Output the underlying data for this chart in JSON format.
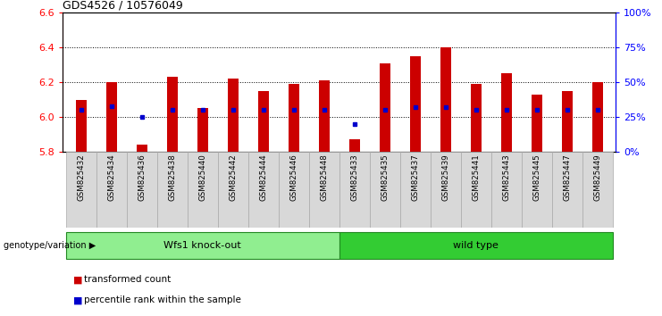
{
  "title": "GDS4526 / 10576049",
  "samples": [
    "GSM825432",
    "GSM825434",
    "GSM825436",
    "GSM825438",
    "GSM825440",
    "GSM825442",
    "GSM825444",
    "GSM825446",
    "GSM825448",
    "GSM825433",
    "GSM825435",
    "GSM825437",
    "GSM825439",
    "GSM825441",
    "GSM825443",
    "GSM825445",
    "GSM825447",
    "GSM825449"
  ],
  "red_values": [
    6.1,
    6.2,
    5.84,
    6.23,
    6.05,
    6.22,
    6.15,
    6.19,
    6.21,
    5.87,
    6.31,
    6.35,
    6.4,
    6.19,
    6.25,
    6.13,
    6.15,
    6.2
  ],
  "blue_percentile": [
    0.3,
    0.33,
    0.25,
    0.3,
    0.3,
    0.3,
    0.3,
    0.3,
    0.3,
    0.2,
    0.3,
    0.32,
    0.32,
    0.3,
    0.3,
    0.3,
    0.3,
    0.3
  ],
  "group_labels": [
    "Wfs1 knock-out",
    "wild type"
  ],
  "group_ko_indices": [
    0,
    8
  ],
  "group_wt_indices": [
    9,
    17
  ],
  "group_ko_color": "#90EE90",
  "group_wt_color": "#33CC33",
  "ylim_left": [
    5.8,
    6.6
  ],
  "ylim_right": [
    0,
    100
  ],
  "yticks_left": [
    5.8,
    6.0,
    6.2,
    6.4,
    6.6
  ],
  "yticks_right": [
    0,
    25,
    50,
    75,
    100
  ],
  "ytick_labels_right": [
    "0%",
    "25%",
    "50%",
    "75%",
    "100%"
  ],
  "bar_color": "#CC0000",
  "blue_color": "#0000CC",
  "baseline": 5.8,
  "bar_width": 0.35,
  "legend_items": [
    "transformed count",
    "percentile rank within the sample"
  ],
  "xlabel_area_label": "genotype/variation",
  "grid_lines": [
    6.0,
    6.2,
    6.4
  ],
  "sample_box_color": "#D8D8D8",
  "sample_box_edge": "#AAAAAA"
}
